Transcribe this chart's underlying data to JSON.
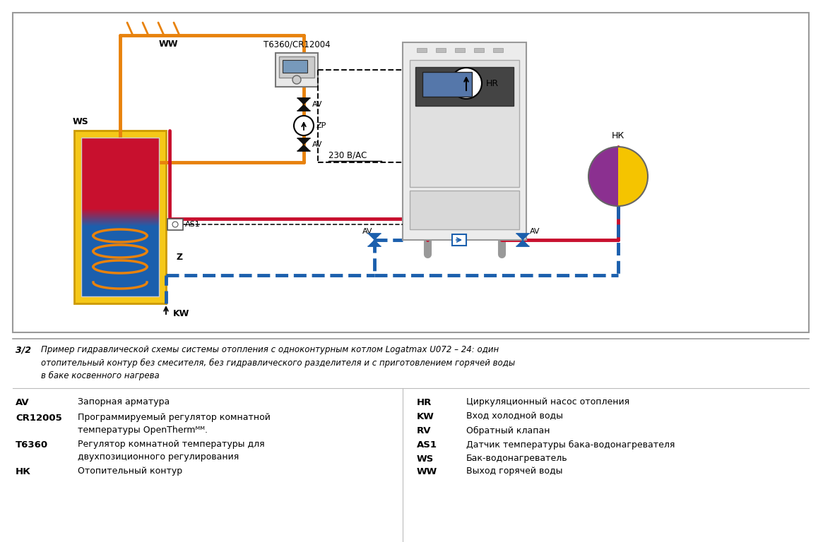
{
  "bg_color": "#ffffff",
  "orange": "#E8820C",
  "red": "#C8102E",
  "blue": "#1B5FAD",
  "yellow": "#F5C818",
  "gray_boiler": "#d8d8d8",
  "gray_dark": "#888888",
  "black": "#111111",
  "caption_num": "3/2",
  "caption1": "Пример гидравлической схемы системы отопления с одноконтурным котлом Logatmax U072 – 24: один",
  "caption2": "отопительный контур без смесителя, без гидравлического разделителя и с приготовлением горячей воды",
  "caption3": "в баке косвенного нагрева",
  "left_legend": [
    [
      "AV",
      "Запорная арматура"
    ],
    [
      "CR12005",
      "Программируемый регулятор комнатной"
    ],
    [
      "",
      "температуры OpenThermᴹᴹ."
    ],
    [
      "T6360",
      "Регулятор комнатной температуры для"
    ],
    [
      "",
      "двухпозиционного регулирования"
    ],
    [
      "НК",
      "Отопительный контур"
    ]
  ],
  "right_legend": [
    [
      "HR",
      "Циркуляционный насос отопления"
    ],
    [
      "KW",
      "Вход холодной воды"
    ],
    [
      "RV",
      "Обратный клапан"
    ],
    [
      "AS1",
      "Датчик температуры бака-водонагревателя"
    ],
    [
      "WS",
      "Бак-водонагреватель"
    ],
    [
      "WW",
      "Выход горячей воды"
    ]
  ]
}
